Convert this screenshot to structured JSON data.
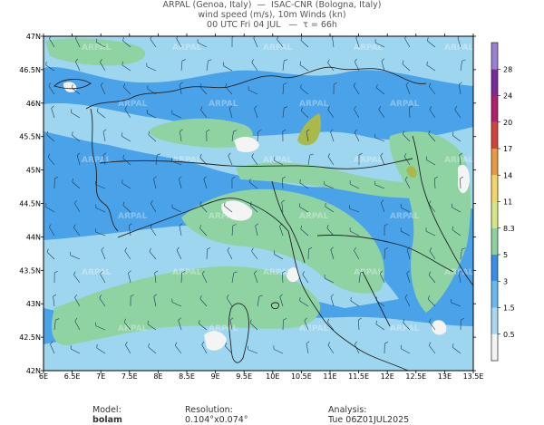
{
  "header": {
    "line1": "ARPAL (Genoa, Italy)  —  ISAC-CNR (Bologna, Italy)",
    "line2": "wind speed (m/s), 10m Winds (kn)",
    "line3": "00 UTC Fri 04 JUL   —  τ = 66h"
  },
  "axes": {
    "lat_ticks": [
      "47N",
      "46.5N",
      "46N",
      "45.5N",
      "45N",
      "44.5N",
      "44N",
      "43.5N",
      "43N",
      "42.5N",
      "42N"
    ],
    "lon_ticks": [
      "6E",
      "6.5E",
      "7E",
      "7.5E",
      "8E",
      "8.5E",
      "9E",
      "9.5E",
      "10E",
      "10.5E",
      "11E",
      "11.5E",
      "12E",
      "12.5E",
      "13E",
      "13.5E"
    ]
  },
  "colorbar": {
    "levels": [
      "0.5",
      "1.5",
      "3",
      "5",
      "8.3",
      "11",
      "14",
      "17",
      "20",
      "24",
      "28"
    ],
    "colors": [
      "#f4f4f4",
      "#a6d8f0",
      "#68b8ec",
      "#3a8ee6",
      "#8fd19e",
      "#d6e58a",
      "#f2d56b",
      "#e69a45",
      "#d0443c",
      "#b0206b",
      "#7a2a9a",
      "#9a80d0"
    ]
  },
  "map_colors": {
    "calm": "#f4f4f4",
    "light": "#9fd6ef",
    "mid": "#4aa2e8",
    "strong": "#2f7fe0",
    "green": "#8fd3a3",
    "olive": "#a9b94a",
    "border": "#222222",
    "watermark_text": "ARPAL"
  },
  "footer": {
    "model_label": "Model:",
    "model": "bolam",
    "resolution_label": "Resolution:",
    "resolution": "0.104°x0.074°",
    "analysis_label": "Analysis:",
    "analysis": "Tue 06Z01JUL2025"
  }
}
